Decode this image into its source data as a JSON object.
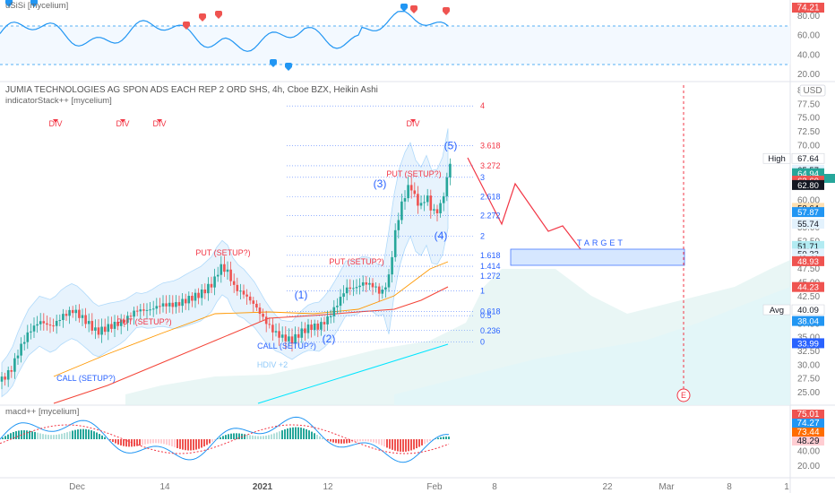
{
  "header": {
    "title": "JUMIA TECHNOLOGIES AG SPON ADS EACH REP 2 ORD SHS, 4h, Cboe BZX, Heikin Ashi",
    "indicator_stack": "indicatorStack++ [mycelium]",
    "rsi_label": "uSiSi [mycelium]",
    "macd_label": "macd++ [mycelium]",
    "currency": "USD"
  },
  "colors": {
    "up": "#26a69a",
    "down": "#ef5350",
    "fib": "#2962ff",
    "projection": "#f23645",
    "bb": "#2196f3",
    "sma": "#f44336",
    "cyan": "#00bcd4"
  },
  "chart_data": {
    "type": "candlestick",
    "x_ticks": [
      "Dec",
      "14",
      "2021",
      "12",
      "Feb",
      "8",
      "22",
      "Mar",
      "8",
      "1"
    ],
    "price_axis": {
      "range": [
        22.5,
        82.5
      ],
      "ticks": [
        "80.00",
        "77.50",
        "75.00",
        "72.50",
        "70.00",
        "67.50",
        "65.00",
        "62.50",
        "60.00",
        "57.50",
        "55.00",
        "52.50",
        "50.00",
        "47.50",
        "45.00",
        "42.50",
        "40.00",
        "37.50",
        "35.00",
        "32.50",
        "30.00",
        "27.50",
        "25.00"
      ]
    },
    "rsi_axis": {
      "ticks": [
        "80.00",
        "60.00",
        "40.00",
        "20.00"
      ],
      "value_label": "74.21"
    },
    "macd_axis": {
      "ticks": [
        "40.00",
        "20.00"
      ]
    },
    "fib_levels": [
      {
        "label": "4",
        "value": 77.2
      },
      {
        "label": "3.618",
        "value": 70.0
      },
      {
        "label": "3.272",
        "value": 66.3
      },
      {
        "label": "3",
        "value": 64.2
      },
      {
        "label": "2.618",
        "value": 60.7
      },
      {
        "label": "2.272",
        "value": 57.2
      },
      {
        "label": "2",
        "value": 53.5
      },
      {
        "label": "1.618",
        "value": 50.0
      },
      {
        "label": "1.414",
        "value": 48.0
      },
      {
        "label": "1.272",
        "value": 46.2
      },
      {
        "label": "1",
        "value": 43.5
      },
      {
        "label": "0.618",
        "value": 39.8
      },
      {
        "label": "0.5",
        "value": 39.0
      },
      {
        "label": "0.236",
        "value": 36.3
      },
      {
        "label": "0",
        "value": 34.2
      }
    ],
    "waves": [
      {
        "label": "(1)",
        "value": 42.8
      },
      {
        "label": "(2)",
        "value": 34.8
      },
      {
        "label": "(3)",
        "value": 63.0
      },
      {
        "label": "(4)",
        "value": 53.6
      },
      {
        "label": "(5)",
        "value": 70.0
      }
    ],
    "annotations": [
      {
        "text": "DIV",
        "type": "div"
      },
      {
        "text": "DIV",
        "type": "div"
      },
      {
        "text": "DIV",
        "type": "div"
      },
      {
        "text": "DIV",
        "type": "div"
      },
      {
        "text": "PUT (SETUP?)",
        "type": "put"
      },
      {
        "text": "PUT (SETUP?)",
        "type": "put"
      },
      {
        "text": "PUT (SETUP?)",
        "type": "put"
      },
      {
        "text": "PUT (SETUP?)",
        "type": "put"
      },
      {
        "text": "CALL (SETUP?)",
        "type": "call"
      },
      {
        "text": "CALL (SETUP?)",
        "type": "call"
      },
      {
        "text": "HDIV +2",
        "type": "hdiv"
      }
    ],
    "target_label": "TARGET",
    "e_marker": "E",
    "price_labels": [
      {
        "text": "67.64",
        "value": 67.64,
        "bg": "#ffffff",
        "fg": "#131722",
        "tag": "High"
      },
      {
        "text": "65.57",
        "value": 65.57,
        "bg": "#e3f2fd",
        "fg": "#131722"
      },
      {
        "text": "64.94",
        "value": 64.94,
        "bg": "#26a69a",
        "fg": "#ffffff"
      },
      {
        "text": "63.60",
        "value": 63.6,
        "bg": "#ef5350",
        "fg": "#ffffff"
      },
      {
        "text": "62.80",
        "value": 62.8,
        "bg": "#131722",
        "fg": "#ffffff"
      },
      {
        "text": "58.64",
        "value": 58.64,
        "bg": "#ffe0b2",
        "fg": "#131722"
      },
      {
        "text": "57.87",
        "value": 57.87,
        "bg": "#2196f3",
        "fg": "#ffffff"
      },
      {
        "text": "55.74",
        "value": 55.74,
        "bg": "#e3f2fd",
        "fg": "#131722"
      },
      {
        "text": "51.71",
        "value": 51.71,
        "bg": "#b2ebf2",
        "fg": "#131722"
      },
      {
        "text": "50.33",
        "value": 50.33,
        "bg": "#e3f2fd",
        "fg": "#131722"
      },
      {
        "text": "49.41",
        "value": 49.41,
        "bg": "#e3f2fd",
        "fg": "#131722"
      },
      {
        "text": "48.93",
        "value": 48.93,
        "bg": "#ef5350",
        "fg": "#ffffff"
      },
      {
        "text": "44.23",
        "value": 44.23,
        "bg": "#ef5350",
        "fg": "#ffffff"
      },
      {
        "text": "40.09",
        "value": 40.09,
        "bg": "#ffffff",
        "fg": "#131722",
        "tag": "Avg"
      },
      {
        "text": "38.04",
        "value": 38.04,
        "bg": "#2196f3",
        "fg": "#ffffff"
      },
      {
        "text": "33.99",
        "value": 33.99,
        "bg": "#2962ff",
        "fg": "#ffffff"
      }
    ],
    "macd_labels": [
      {
        "text": "75.01",
        "bg": "#ef5350",
        "fg": "#ffffff"
      },
      {
        "text": "74.27",
        "bg": "#2196f3",
        "fg": "#ffffff"
      },
      {
        "text": "73.44",
        "bg": "#ff6d00",
        "fg": "#ffffff"
      },
      {
        "text": "48.29",
        "bg": "#ffcdd2",
        "fg": "#131722"
      }
    ]
  }
}
